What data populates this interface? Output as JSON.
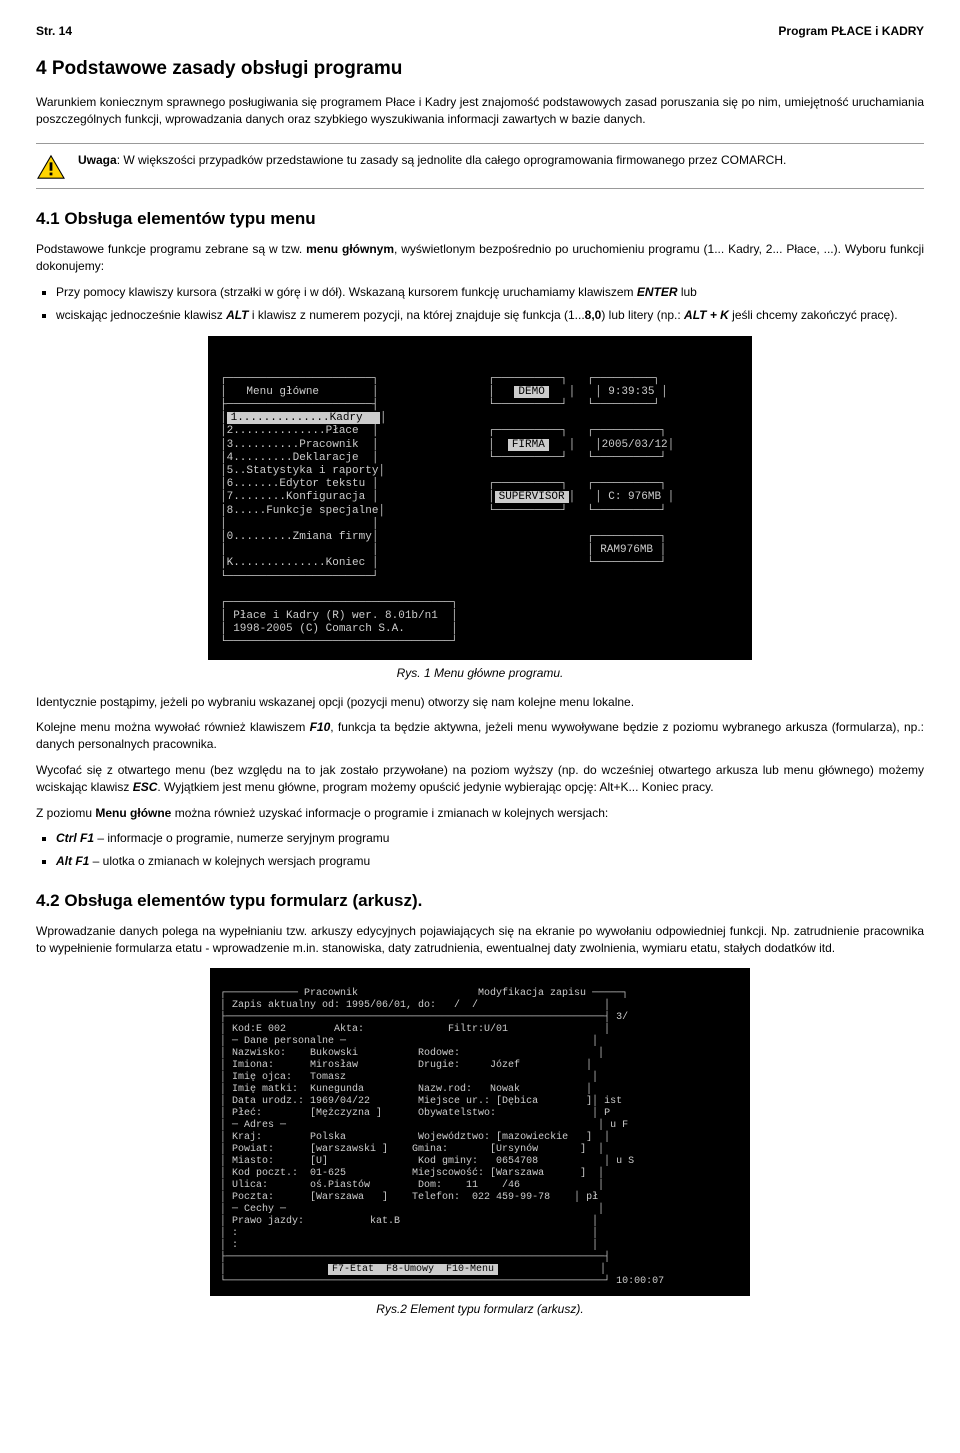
{
  "header": {
    "page_label": "Str. 14",
    "title": "Program PŁACE i KADRY"
  },
  "section4": {
    "heading": "4 Podstawowe zasady obsługi programu",
    "para1": "Warunkiem koniecznym sprawnego posługiwania się programem Płace i Kadry jest znajomość podstawowych zasad poruszania się po nim, umiejętność uruchamiania poszczególnych funkcji, wprowadzania danych oraz szybkiego wyszukiwania informacji zawartych w bazie danych.",
    "warn_prefix": "Uwaga",
    "warn_body": ": W większości przypadków przedstawione tu zasady są jednolite dla całego oprogramowania firmowanego przez COMARCH."
  },
  "section41": {
    "heading": "4.1 Obsługa elementów typu menu",
    "para1_a": "Podstawowe funkcje programu zebrane są w tzw. ",
    "para1_b": "menu głównym",
    "para1_c": ", wyświetlonym bezpośrednio po uruchomieniu programu (1... Kadry, 2... Płace, ...). Wyboru funkcji dokonujemy:",
    "li1_a": "Przy pomocy klawiszy kursora (strzałki w górę i w dół). Wskazaną kursorem funkcję uruchamiamy klawiszem ",
    "li1_enter": "ENTER",
    "li1_b": " lub",
    "li2_a": "wciskając jednocześnie klawisz ",
    "li2_alt": "ALT",
    "li2_b": " i klawisz z numerem pozycji, na której znajduje się funkcja (1...",
    "li2_80": "8,0",
    "li2_c": ") lub litery (np.: ",
    "li2_altk": "ALT + K",
    "li2_d": " jeśli chcemy zakończyć pracę)."
  },
  "menu_fig": {
    "title": "Menu główne",
    "demo": "DEMO",
    "time": "9:39:35",
    "items": [
      "1..............Kadry",
      "2..............Płace",
      "3..........Pracownik",
      "4.........Deklaracje",
      "5..Statystyka i raporty",
      "6.......Edytor tekstu",
      "7........Konfiguracja",
      "8.....Funkcje specjalne",
      "",
      "0.........Zmiana firmy",
      "",
      "K..............Koniec"
    ],
    "firma": "FIRMA",
    "date": "2005/03/12",
    "supervisor": "SUPERVISOR",
    "disk": "C: 976MB",
    "ram": "RAM976MB",
    "footer1": "Płace i Kadry (R) wer. 8.01b/n1",
    "footer2": "1998-2005 (C) Comarch S.A.",
    "caption": "Rys. 1 Menu główne programu."
  },
  "after_fig1": {
    "p1": "Identycznie postąpimy, jeżeli po wybraniu wskazanej opcji (pozycji menu) otworzy się nam kolejne menu lokalne.",
    "p2_a": "Kolejne menu można wywołać również klawiszem ",
    "p2_f10": "F10",
    "p2_b": ", funkcja ta będzie aktywna, jeżeli menu wywoływane będzie z poziomu wybranego arkusza (formularza), np.: danych personalnych pracownika.",
    "p3_a": "Wycofać się z otwartego menu (bez względu na to jak zostało przywołane) na poziom wyższy (np. do wcześniej otwartego arkusza lub menu głównego) możemy wciskając klawisz ",
    "p3_esc": "ESC",
    "p3_b": ". Wyjątkiem jest menu główne, program możemy opuścić jedynie wybierając opcję: Alt+K... Koniec pracy.",
    "p4_a": "Z poziomu ",
    "p4_menu": "Menu główne",
    "p4_b": " można również uzyskać informacje o programie i zmianach w kolejnych wersjach:",
    "li1_key": "Ctrl F1",
    "li1_txt": " – informacje o programie, numerze seryjnym programu",
    "li2_key": "Alt F1",
    "li2_txt": " – ulotka o zmianach w kolejnych wersjach programu"
  },
  "section42": {
    "heading": "4.2 Obsługa elementów typu formularz (arkusz).",
    "para1": "Wprowadzanie danych polega na wypełnianiu tzw. arkuszy edycyjnych pojawiających się na ekranie po wywołaniu odpowiedniej funkcji. Np. zatrudnienie pracownika to wypełnienie formularza etatu - wprowadzenie m.in. stanowiska, daty zatrudnienia, ewentualnej daty zwolnienia, wymiaru etatu, stałych dodatków itd."
  },
  "form_fig": {
    "header": "Pracownik                    Modyfikacja zapisu",
    "line_zapis": "Zapis aktualny od: 1995/06/01, do:   /  /",
    "kod": "Kod:E 002        Akta:              Filtr:U/01",
    "dane_pers": "─ Dane personalne ─",
    "nazwisko": "Nazwisko:    Bukowski          Rodowe:",
    "imiona": "Imiona:      Mirosław          Drugie:     Józef",
    "imie_ojca": "Imię ojca:   Tomasz",
    "imie_matki": "Imię matki:  Kunegunda         Nazw.rod:   Nowak",
    "data_ur": "Data urodz.: 1969/04/22        Miejsce ur.: [Dębica        ]",
    "plec": "Płeć:        [Mężczyzna ]      Obywatelstwo:",
    "adres_hdr": "─ Adres ─",
    "kraj": "Kraj:        Polska            Województwo: [mazowieckie   ]",
    "powiat": "Powiat:      [warszawski ]    Gmina:       [Ursynów       ]",
    "miasto": "Miasto:      [U]               Kod gminy:   0654708",
    "kodpocz": "Kod poczt.:  01-625           Miejscowość: [Warszawa      ]",
    "ulica": "Ulica:       oś.Piastów        Dom:    11    /46",
    "poczta": "Poczta:      [Warszawa   ]    Telefon:  022 459-99-78",
    "cechy": "─ Cechy ─",
    "prawo": "Prawo jazdy:           kat.B",
    "dot1": ":",
    "dot2": ":",
    "footer_keys": "F7-Etat  F8-Umowy  F10-Menu",
    "side_3": "3/",
    "side_ist": "ist",
    "side_p": "P",
    "side_uf": "u F",
    "side_us": "u S",
    "side_pl": "pł",
    "clock": "10:00:07",
    "caption": "Rys.2 Element typu formularz (arkusz)."
  }
}
